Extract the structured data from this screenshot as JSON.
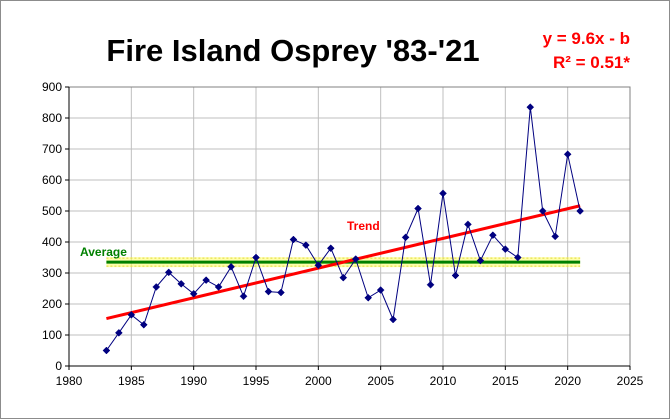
{
  "chart_data": {
    "type": "line",
    "title": "Fire Island Osprey '83-'21",
    "equation": "y = 9.6x - b",
    "r_squared": "R² = 0.51*",
    "xlabel": "",
    "ylabel": "",
    "xlim": [
      1980,
      2025
    ],
    "ylim": [
      0,
      900
    ],
    "x_ticks": [
      1980,
      1985,
      1990,
      1995,
      2000,
      2005,
      2010,
      2015,
      2020,
      2025
    ],
    "y_ticks": [
      0,
      100,
      200,
      300,
      400,
      500,
      600,
      700,
      800,
      900
    ],
    "grid": true,
    "legend": "none",
    "series": [
      {
        "name": "",
        "color": "#000080",
        "marker": "diamond",
        "x": [
          1983,
          1984,
          1985,
          1986,
          1987,
          1988,
          1989,
          1990,
          1991,
          1992,
          1993,
          1994,
          1995,
          1996,
          1997,
          1998,
          1999,
          2000,
          2001,
          2002,
          2003,
          2004,
          2005,
          2006,
          2007,
          2008,
          2009,
          2010,
          2011,
          2012,
          2013,
          2014,
          2015,
          2016,
          2017,
          2018,
          2019,
          2020,
          2021
        ],
        "y": [
          50,
          107,
          165,
          133,
          255,
          302,
          265,
          233,
          277,
          255,
          320,
          225,
          350,
          240,
          237,
          408,
          390,
          325,
          380,
          285,
          345,
          220,
          245,
          150,
          415,
          508,
          262,
          557,
          292,
          457,
          340,
          422,
          377,
          350,
          835,
          500,
          418,
          683,
          500
        ]
      }
    ],
    "trend_line": {
      "label": "Trend",
      "color": "#ff0000",
      "x": [
        1983,
        2021
      ],
      "y": [
        153,
        517
      ]
    },
    "average_line": {
      "label": "Average",
      "color": "#008000",
      "value": 335,
      "x": [
        1983,
        2021
      ]
    }
  }
}
